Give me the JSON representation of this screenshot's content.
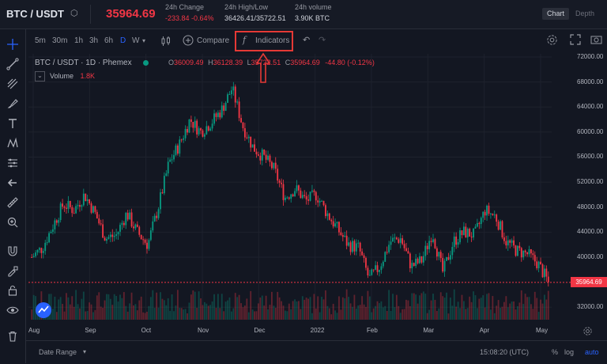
{
  "header": {
    "pair": "BTC / USDT",
    "last_price": "35964.69",
    "change_label": "24h Change",
    "change_value": "-233.84 -0.64%",
    "highlow_label": "24h High/Low",
    "highlow_value": "36426.41/35722.51",
    "volume_label": "24h volume",
    "volume_value": "3.90K BTC",
    "view_toggle": [
      "Chart",
      "Depth"
    ],
    "colors": {
      "down": "#f23645",
      "up": "#089981",
      "accent": "#2962ff"
    }
  },
  "toolbar": {
    "intervals": [
      "5m",
      "30m",
      "1h",
      "3h",
      "6h",
      "D",
      "W"
    ],
    "active_interval": "D",
    "compare_label": "Compare",
    "indicators_label": "Indicators"
  },
  "legend": {
    "symbol": "BTC / USDT · 1D · Phemex",
    "ohlc": {
      "o": "36009.49",
      "h": "36128.39",
      "l": "35722.51",
      "c": "35964.69",
      "change": "-44.80 (-0.12%)"
    },
    "volume_label": "Volume",
    "volume_value": "1.8K"
  },
  "chart_data": {
    "type": "candlestick",
    "price_axis_ticks": [
      "72000.00",
      "68000.00",
      "64000.00",
      "60000.00",
      "56000.00",
      "52000.00",
      "48000.00",
      "44000.00",
      "40000.00",
      "32000.00"
    ],
    "current_price_label": "35964.69",
    "time_axis_ticks": [
      "Aug",
      "Sep",
      "Oct",
      "Nov",
      "Dec",
      "2022",
      "Feb",
      "Mar",
      "Apr",
      "May"
    ],
    "ylim": [
      30000,
      72500
    ],
    "trend_closes": [
      40000,
      41500,
      45000,
      48500,
      47500,
      50000,
      47000,
      43000,
      43500,
      47000,
      44000,
      42000,
      48000,
      55000,
      58000,
      62000,
      60000,
      61500,
      63500,
      67000,
      61000,
      57500,
      56000,
      54000,
      49500,
      51000,
      49000,
      50000,
      47000,
      44500,
      42000,
      41500,
      36500,
      38500,
      42500,
      43000,
      38500,
      39500,
      44000,
      37500,
      42500,
      44000,
      43500,
      47500,
      46500,
      42500,
      41000,
      40500,
      39000,
      36000
    ]
  },
  "bottombar": {
    "date_range_label": "Date Range",
    "time": "15:08:20 (UTC)",
    "options": [
      "%",
      "log",
      "auto"
    ]
  },
  "icons": {
    "left_tools": [
      "crosshair-icon",
      "trend-line-icon",
      "fib-icon",
      "brush-icon",
      "text-icon",
      "pattern-icon",
      "prediction-icon",
      "arrow-left-icon",
      "ruler-icon",
      "zoom-in-icon",
      "magnet-icon",
      "lock-draw-icon",
      "lock-icon",
      "eye-icon",
      "trash-icon"
    ]
  }
}
